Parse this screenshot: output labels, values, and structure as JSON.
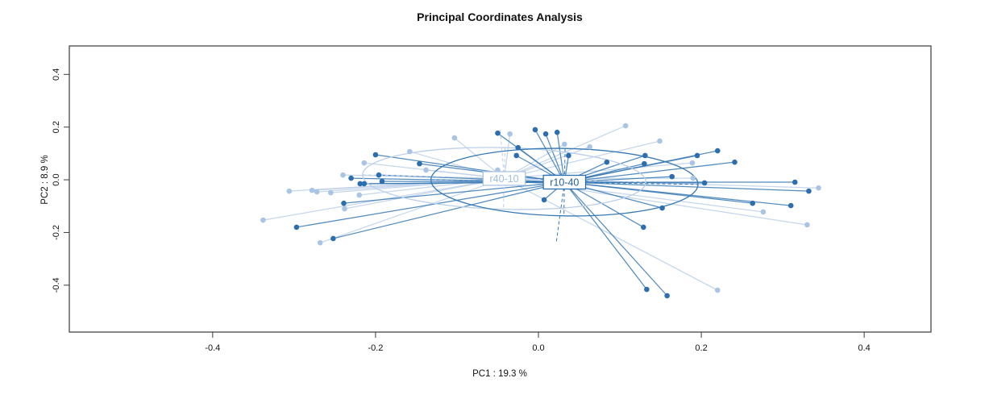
{
  "chart_data": {
    "type": "scatter",
    "title": "Principal Coordinates Analysis",
    "xlabel": "PC1 :  19.3 %",
    "ylabel": "PC2 :  8.9 %",
    "xlim": [
      -0.576,
      0.482
    ],
    "ylim": [
      -0.578,
      0.508
    ],
    "x_ticks": [
      -0.4,
      -0.2,
      0.0,
      0.2,
      0.4
    ],
    "x_tick_labels": [
      "-0.4",
      "-0.2",
      "0.0",
      "0.2",
      "0.4"
    ],
    "y_ticks": [
      -0.4,
      -0.2,
      0.0,
      0.2,
      0.4
    ],
    "y_tick_labels": [
      "-0.4",
      "-0.2",
      "0.0",
      "0.2",
      "0.4"
    ],
    "grid": false,
    "legend": "none",
    "frame_color": "#3a3a3a",
    "groups": [
      {
        "name": "r40-10",
        "point_color": "#a9c4e4",
        "line_color": "#bccfe9",
        "label_text_color": "#9fbede",
        "label_border_color": "#a9c4e4",
        "centroid": [
          -0.042,
          0.005
        ],
        "ellipse": {
          "cx": -0.042,
          "cy": 0.005,
          "rx": 0.174,
          "ry": 0.117,
          "angle_deg": 1.5
        },
        "points": [
          [
            -0.103,
            0.159
          ],
          [
            -0.158,
            0.107
          ],
          [
            -0.214,
            0.064
          ],
          [
            -0.138,
            0.037
          ],
          [
            -0.24,
            0.018
          ],
          [
            -0.306,
            -0.043
          ],
          [
            -0.278,
            -0.04
          ],
          [
            -0.272,
            -0.046
          ],
          [
            -0.255,
            -0.049
          ],
          [
            -0.22,
            -0.058
          ],
          [
            -0.035,
            0.174
          ],
          [
            0.032,
            0.135
          ],
          [
            0.063,
            0.125
          ],
          [
            0.107,
            0.205
          ],
          [
            0.149,
            0.147
          ],
          [
            0.189,
            0.064
          ],
          [
            -0.05,
            0.037
          ],
          [
            0.19,
            0.006
          ],
          [
            0.344,
            -0.031
          ],
          [
            -0.238,
            -0.11
          ],
          [
            -0.338,
            -0.153
          ],
          [
            -0.268,
            -0.239
          ],
          [
            0.276,
            -0.122
          ],
          [
            0.33,
            -0.171
          ],
          [
            0.22,
            -0.419
          ]
        ]
      },
      {
        "name": "r10-40",
        "point_color": "#2d6fae",
        "line_color": "#3678b4",
        "label_text_color": "#205e9e",
        "label_border_color": "#2d6fae",
        "centroid": [
          0.032,
          -0.009
        ],
        "ellipse": {
          "cx": 0.032,
          "cy": -0.009,
          "rx": 0.164,
          "ry": 0.128,
          "angle_deg": 1.0
        },
        "points": [
          [
            -0.2,
            0.095
          ],
          [
            -0.146,
            0.061
          ],
          [
            -0.23,
            0.006
          ],
          [
            -0.196,
            0.018
          ],
          [
            -0.192,
            -0.006
          ],
          [
            -0.219,
            -0.015
          ],
          [
            -0.214,
            -0.015
          ],
          [
            -0.239,
            -0.089
          ],
          [
            -0.05,
            0.177
          ],
          [
            -0.004,
            0.19
          ],
          [
            0.009,
            0.174
          ],
          [
            0.023,
            0.18
          ],
          [
            -0.025,
            0.122
          ],
          [
            -0.027,
            0.092
          ],
          [
            0.037,
            0.092
          ],
          [
            0.084,
            0.067
          ],
          [
            0.131,
            0.092
          ],
          [
            0.13,
            0.061
          ],
          [
            0.195,
            0.092
          ],
          [
            0.164,
            0.012
          ],
          [
            0.204,
            -0.012
          ],
          [
            0.007,
            -0.076
          ],
          [
            0.22,
            0.11
          ],
          [
            0.241,
            0.067
          ],
          [
            0.315,
            -0.009
          ],
          [
            0.332,
            -0.043
          ],
          [
            0.263,
            -0.089
          ],
          [
            0.31,
            -0.098
          ],
          [
            -0.297,
            -0.18
          ],
          [
            -0.252,
            -0.223
          ],
          [
            0.152,
            -0.107
          ],
          [
            0.129,
            -0.18
          ],
          [
            0.133,
            -0.416
          ],
          [
            0.158,
            -0.44
          ]
        ]
      }
    ],
    "dashed_rays": [
      {
        "group": 0,
        "to": [
          -0.047,
          0.193
        ]
      },
      {
        "group": 1,
        "to": [
          0.022,
          -0.236
        ]
      }
    ]
  }
}
